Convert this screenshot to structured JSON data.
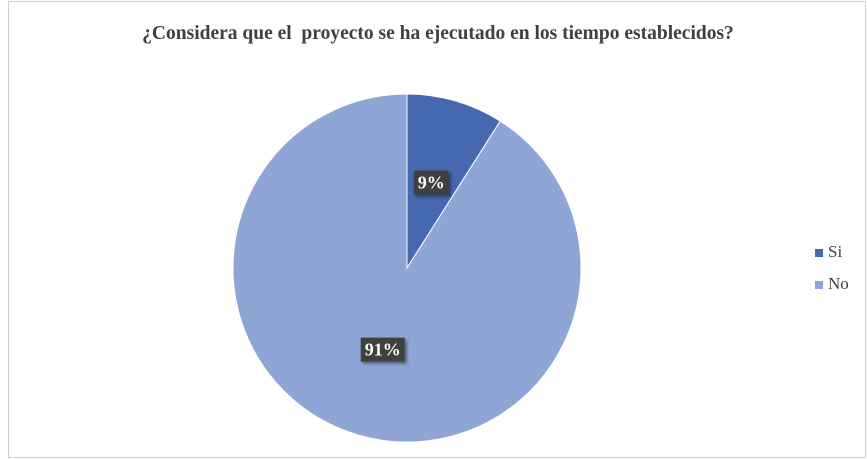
{
  "chart_data": {
    "type": "pie",
    "title": "¿Considera que el  proyecto se ha ejecutado en los tiempo establecidos?",
    "categories": [
      "Si",
      "No"
    ],
    "values": [
      9,
      91
    ],
    "value_labels": [
      "9%",
      "91%"
    ],
    "colors": [
      "#4568b1",
      "#8fa5d6"
    ],
    "legend": "right"
  }
}
